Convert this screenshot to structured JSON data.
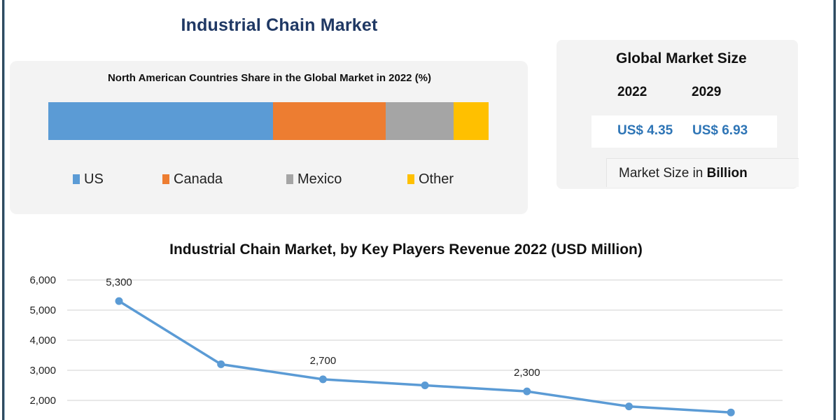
{
  "main_title": "Industrial  Chain Market",
  "share_chart": {
    "title": "North American Countries Share in the Global Market in 2022  (%)"
  },
  "market_size": {
    "title": "Global Market Size",
    "years": [
      "2022",
      "2029"
    ],
    "values": [
      "US$ 4.35",
      "US$ 6.93"
    ],
    "unit_prefix": "Market Size in ",
    "unit_bold": "Billion"
  },
  "colors": {
    "title": "#1f3864",
    "value": "#2e75b6",
    "line": "#5b9bd5"
  },
  "chart_data": [
    {
      "type": "bar",
      "stacked": true,
      "orientation": "horizontal",
      "title": "North American Countries Share in the Global Market in 2022  (%)",
      "categories": [
        "2022"
      ],
      "series": [
        {
          "name": "US",
          "values": [
            51
          ],
          "color": "#5b9bd5"
        },
        {
          "name": "Canada",
          "values": [
            25.6
          ],
          "color": "#ed7d31"
        },
        {
          "name": "Mexico",
          "values": [
            15.4
          ],
          "color": "#a5a5a5"
        },
        {
          "name": "Other",
          "values": [
            8
          ],
          "color": "#ffc000"
        }
      ],
      "legend": "bottom"
    },
    {
      "type": "line",
      "title": "Industrial Chain Market, by Key Players Revenue 2022 (USD Million)",
      "xlabel": "",
      "ylabel": "",
      "x": [
        1,
        2,
        3,
        4,
        5,
        6,
        7
      ],
      "series": [
        {
          "name": "Revenue",
          "values": [
            5300,
            3200,
            2700,
            2500,
            2300,
            1800,
            1600
          ]
        }
      ],
      "data_labels": [
        {
          "index": 0,
          "text": "5,300"
        },
        {
          "index": 2,
          "text": "2,700"
        },
        {
          "index": 4,
          "text": "2,300"
        }
      ],
      "yticks": [
        "6,000",
        "5,000",
        "4,000",
        "3,000",
        "2,000"
      ],
      "ytick_values": [
        6000,
        5000,
        4000,
        3000,
        2000
      ],
      "ylim": [
        1500,
        6000
      ],
      "grid": true
    }
  ]
}
